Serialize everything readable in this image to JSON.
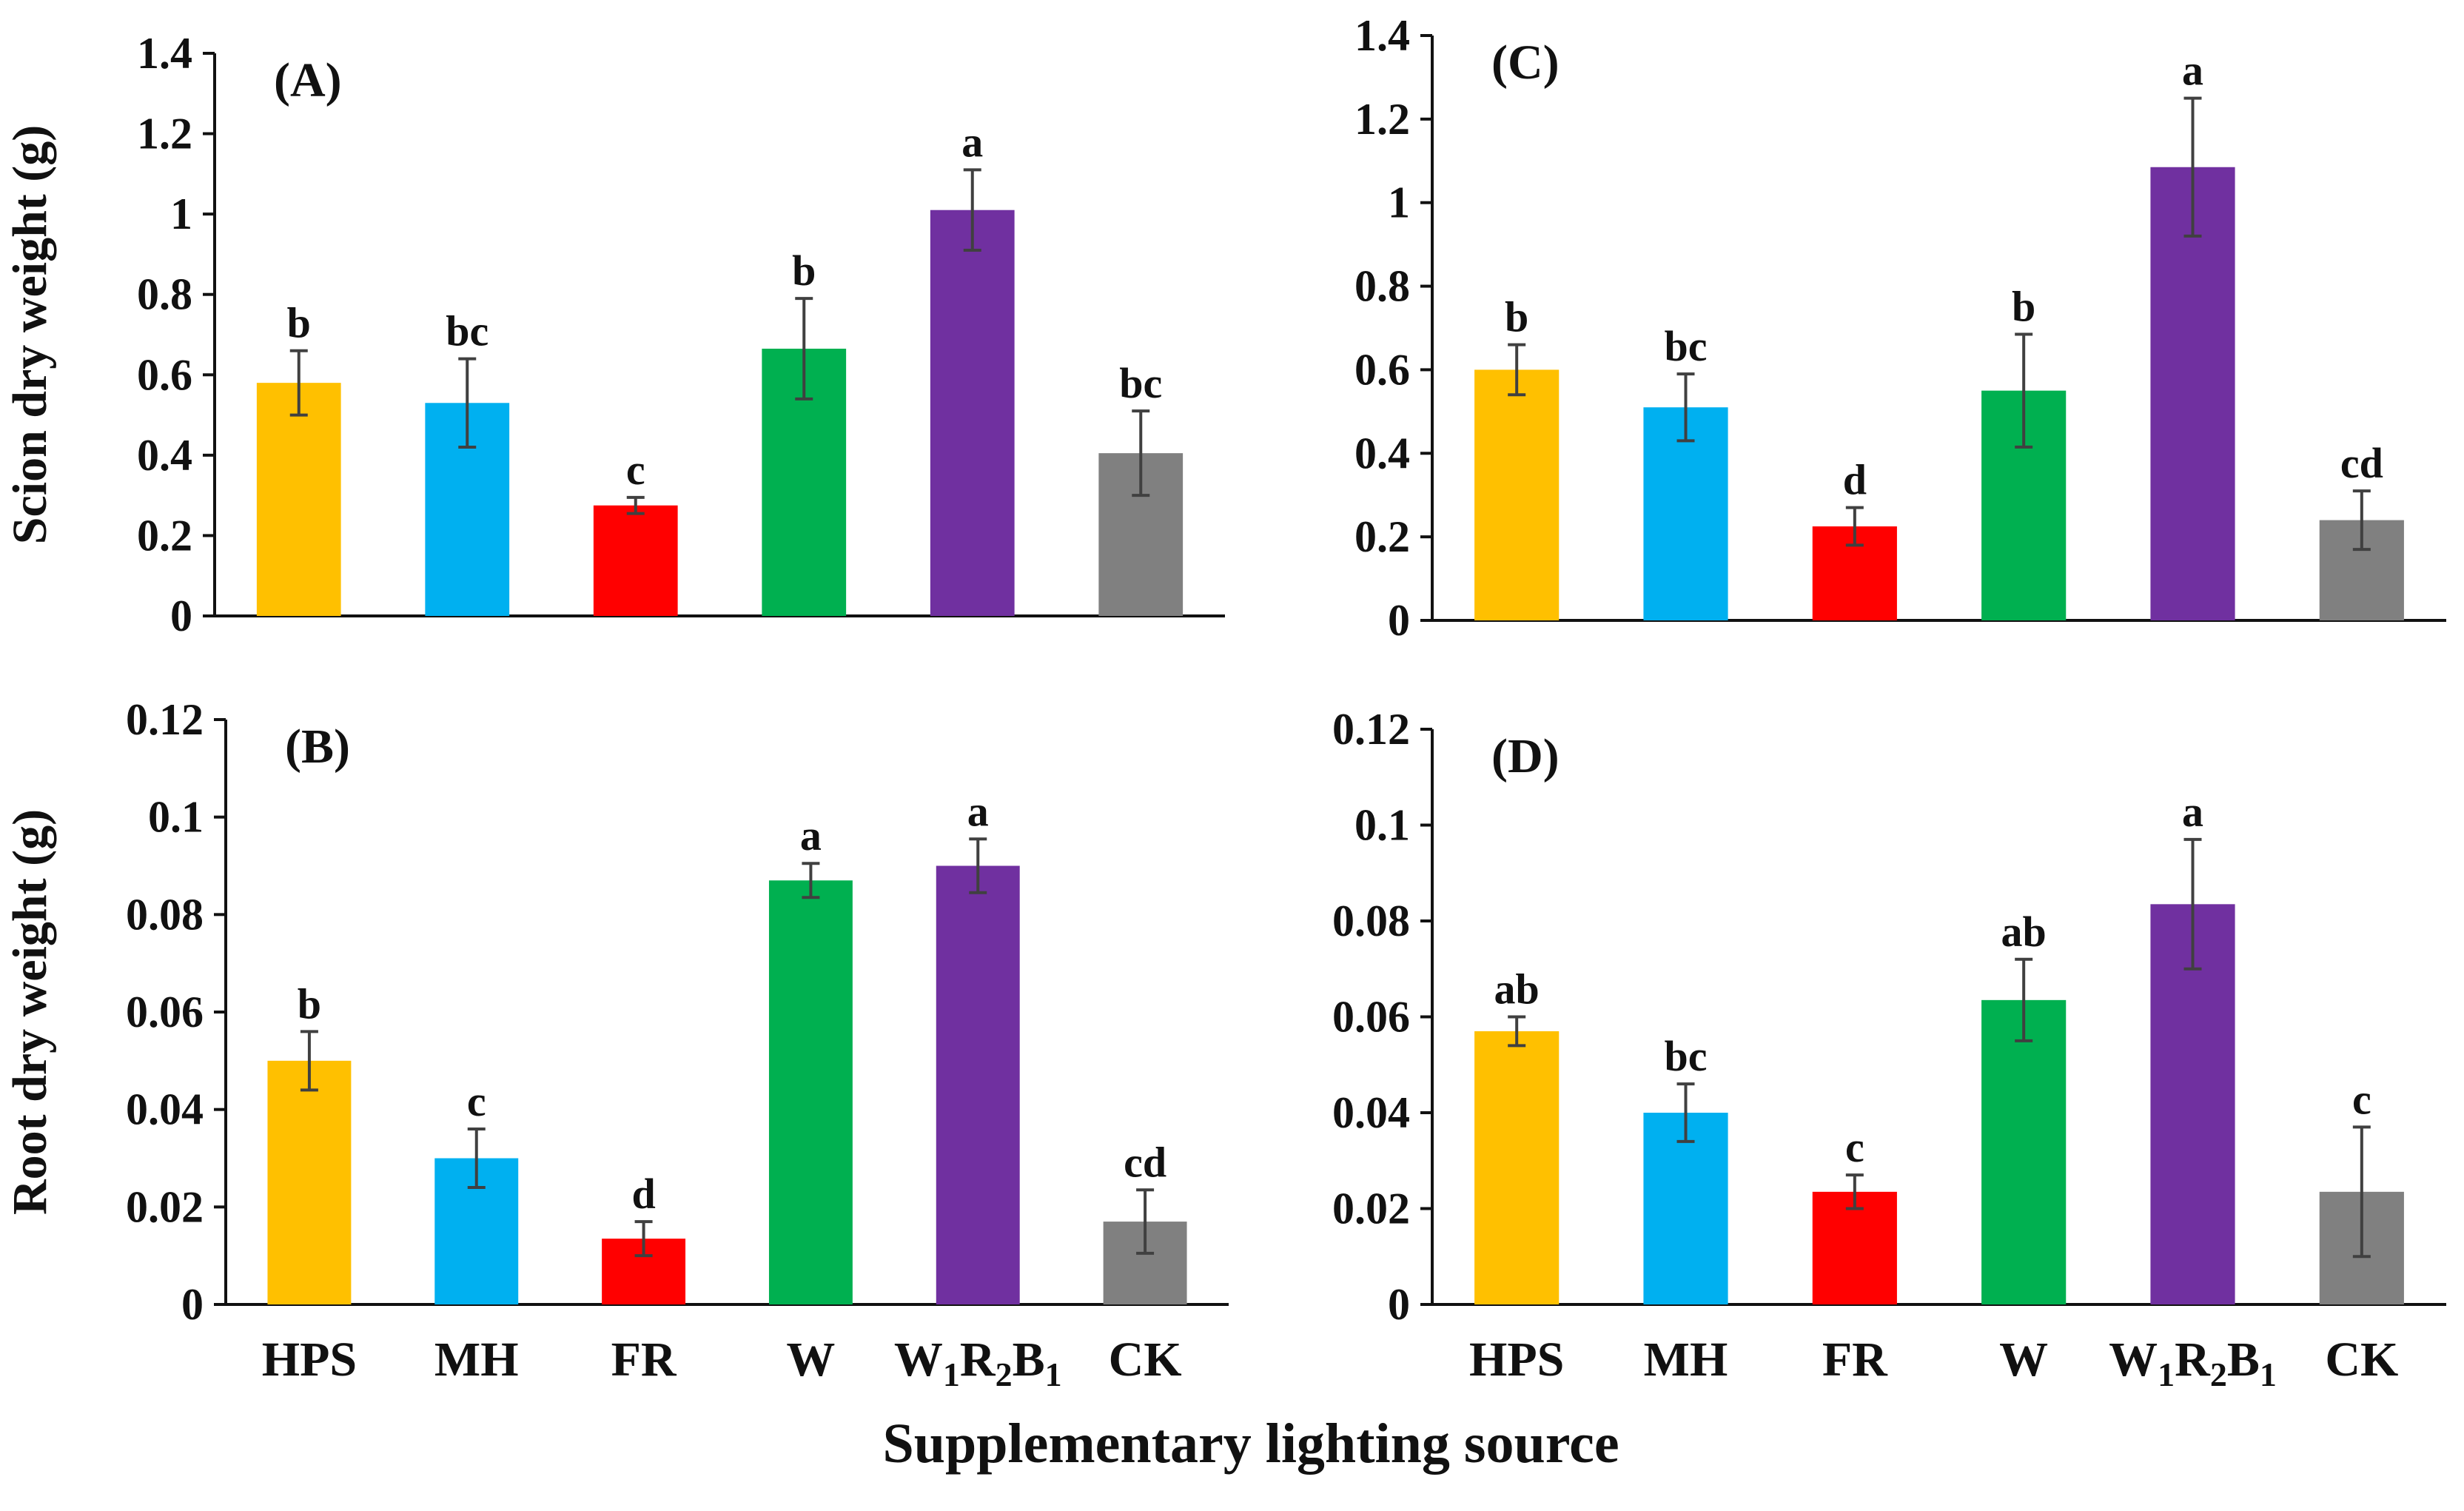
{
  "chart_data": [
    {
      "type": "bar",
      "panel": "(A)",
      "ylabel": "Scion dry weight (g)",
      "ylim": [
        0,
        1.4
      ],
      "yticks": [
        "0",
        "0.2",
        "0.4",
        "0.6",
        "0.8",
        "1",
        "1.2",
        "1.4"
      ],
      "categories": [
        "HPS",
        "MH",
        "FR",
        "W",
        "W1R2B1",
        "CK"
      ],
      "values": [
        0.58,
        0.53,
        0.275,
        0.665,
        1.01,
        0.405
      ],
      "errors": [
        0.08,
        0.11,
        0.02,
        0.125,
        0.1,
        0.105
      ],
      "significance": [
        "b",
        "bc",
        "c",
        "b",
        "a",
        "bc"
      ],
      "show_category_labels": false
    },
    {
      "type": "bar",
      "panel": "(C)",
      "ylabel": "",
      "ylim": [
        0,
        1.4
      ],
      "yticks": [
        "0",
        "0.2",
        "0.4",
        "0.6",
        "0.8",
        "1",
        "1.2",
        "1.4"
      ],
      "categories": [
        "HPS",
        "MH",
        "FR",
        "W",
        "W1R2B1",
        "CK"
      ],
      "values": [
        0.6,
        0.51,
        0.225,
        0.55,
        1.085,
        0.24
      ],
      "errors": [
        0.06,
        0.08,
        0.045,
        0.135,
        0.165,
        0.07
      ],
      "significance": [
        "b",
        "bc",
        "d",
        "b",
        "a",
        "cd"
      ],
      "show_category_labels": false
    },
    {
      "type": "bar",
      "panel": "(B)",
      "ylabel": "Root dry weight (g)",
      "ylim": [
        0,
        0.12
      ],
      "yticks": [
        "0",
        "0.02",
        "0.04",
        "0.06",
        "0.08",
        "0.1",
        "0.12"
      ],
      "categories": [
        "HPS",
        "MH",
        "FR",
        "W",
        "W1R2B1",
        "CK"
      ],
      "values": [
        0.05,
        0.03,
        0.0135,
        0.087,
        0.09,
        0.017
      ],
      "errors": [
        0.006,
        0.006,
        0.0035,
        0.0035,
        0.0055,
        0.0065
      ],
      "significance": [
        "b",
        "c",
        "d",
        "a",
        "a",
        "cd"
      ],
      "show_category_labels": true
    },
    {
      "type": "bar",
      "panel": "(D)",
      "ylabel": "",
      "ylim": [
        0,
        0.12
      ],
      "yticks": [
        "0",
        "0.02",
        "0.04",
        "0.06",
        "0.08",
        "0.1",
        "0.12"
      ],
      "categories": [
        "HPS",
        "MH",
        "FR",
        "W",
        "W1R2B1",
        "CK"
      ],
      "values": [
        0.057,
        0.04,
        0.0235,
        0.0635,
        0.0835,
        0.0235
      ],
      "errors": [
        0.003,
        0.006,
        0.0035,
        0.0085,
        0.0135,
        0.0135
      ],
      "significance": [
        "ab",
        "bc",
        "c",
        "ab",
        "a",
        "c"
      ],
      "show_category_labels": true
    }
  ],
  "xlabel": "Supplementary lighting source",
  "bar_colors": [
    "#FFC000",
    "#00B0F0",
    "#FF0000",
    "#00B050",
    "#7030A0",
    "#808080"
  ],
  "error_bar_color": "#404040",
  "axis_color": "#111111"
}
